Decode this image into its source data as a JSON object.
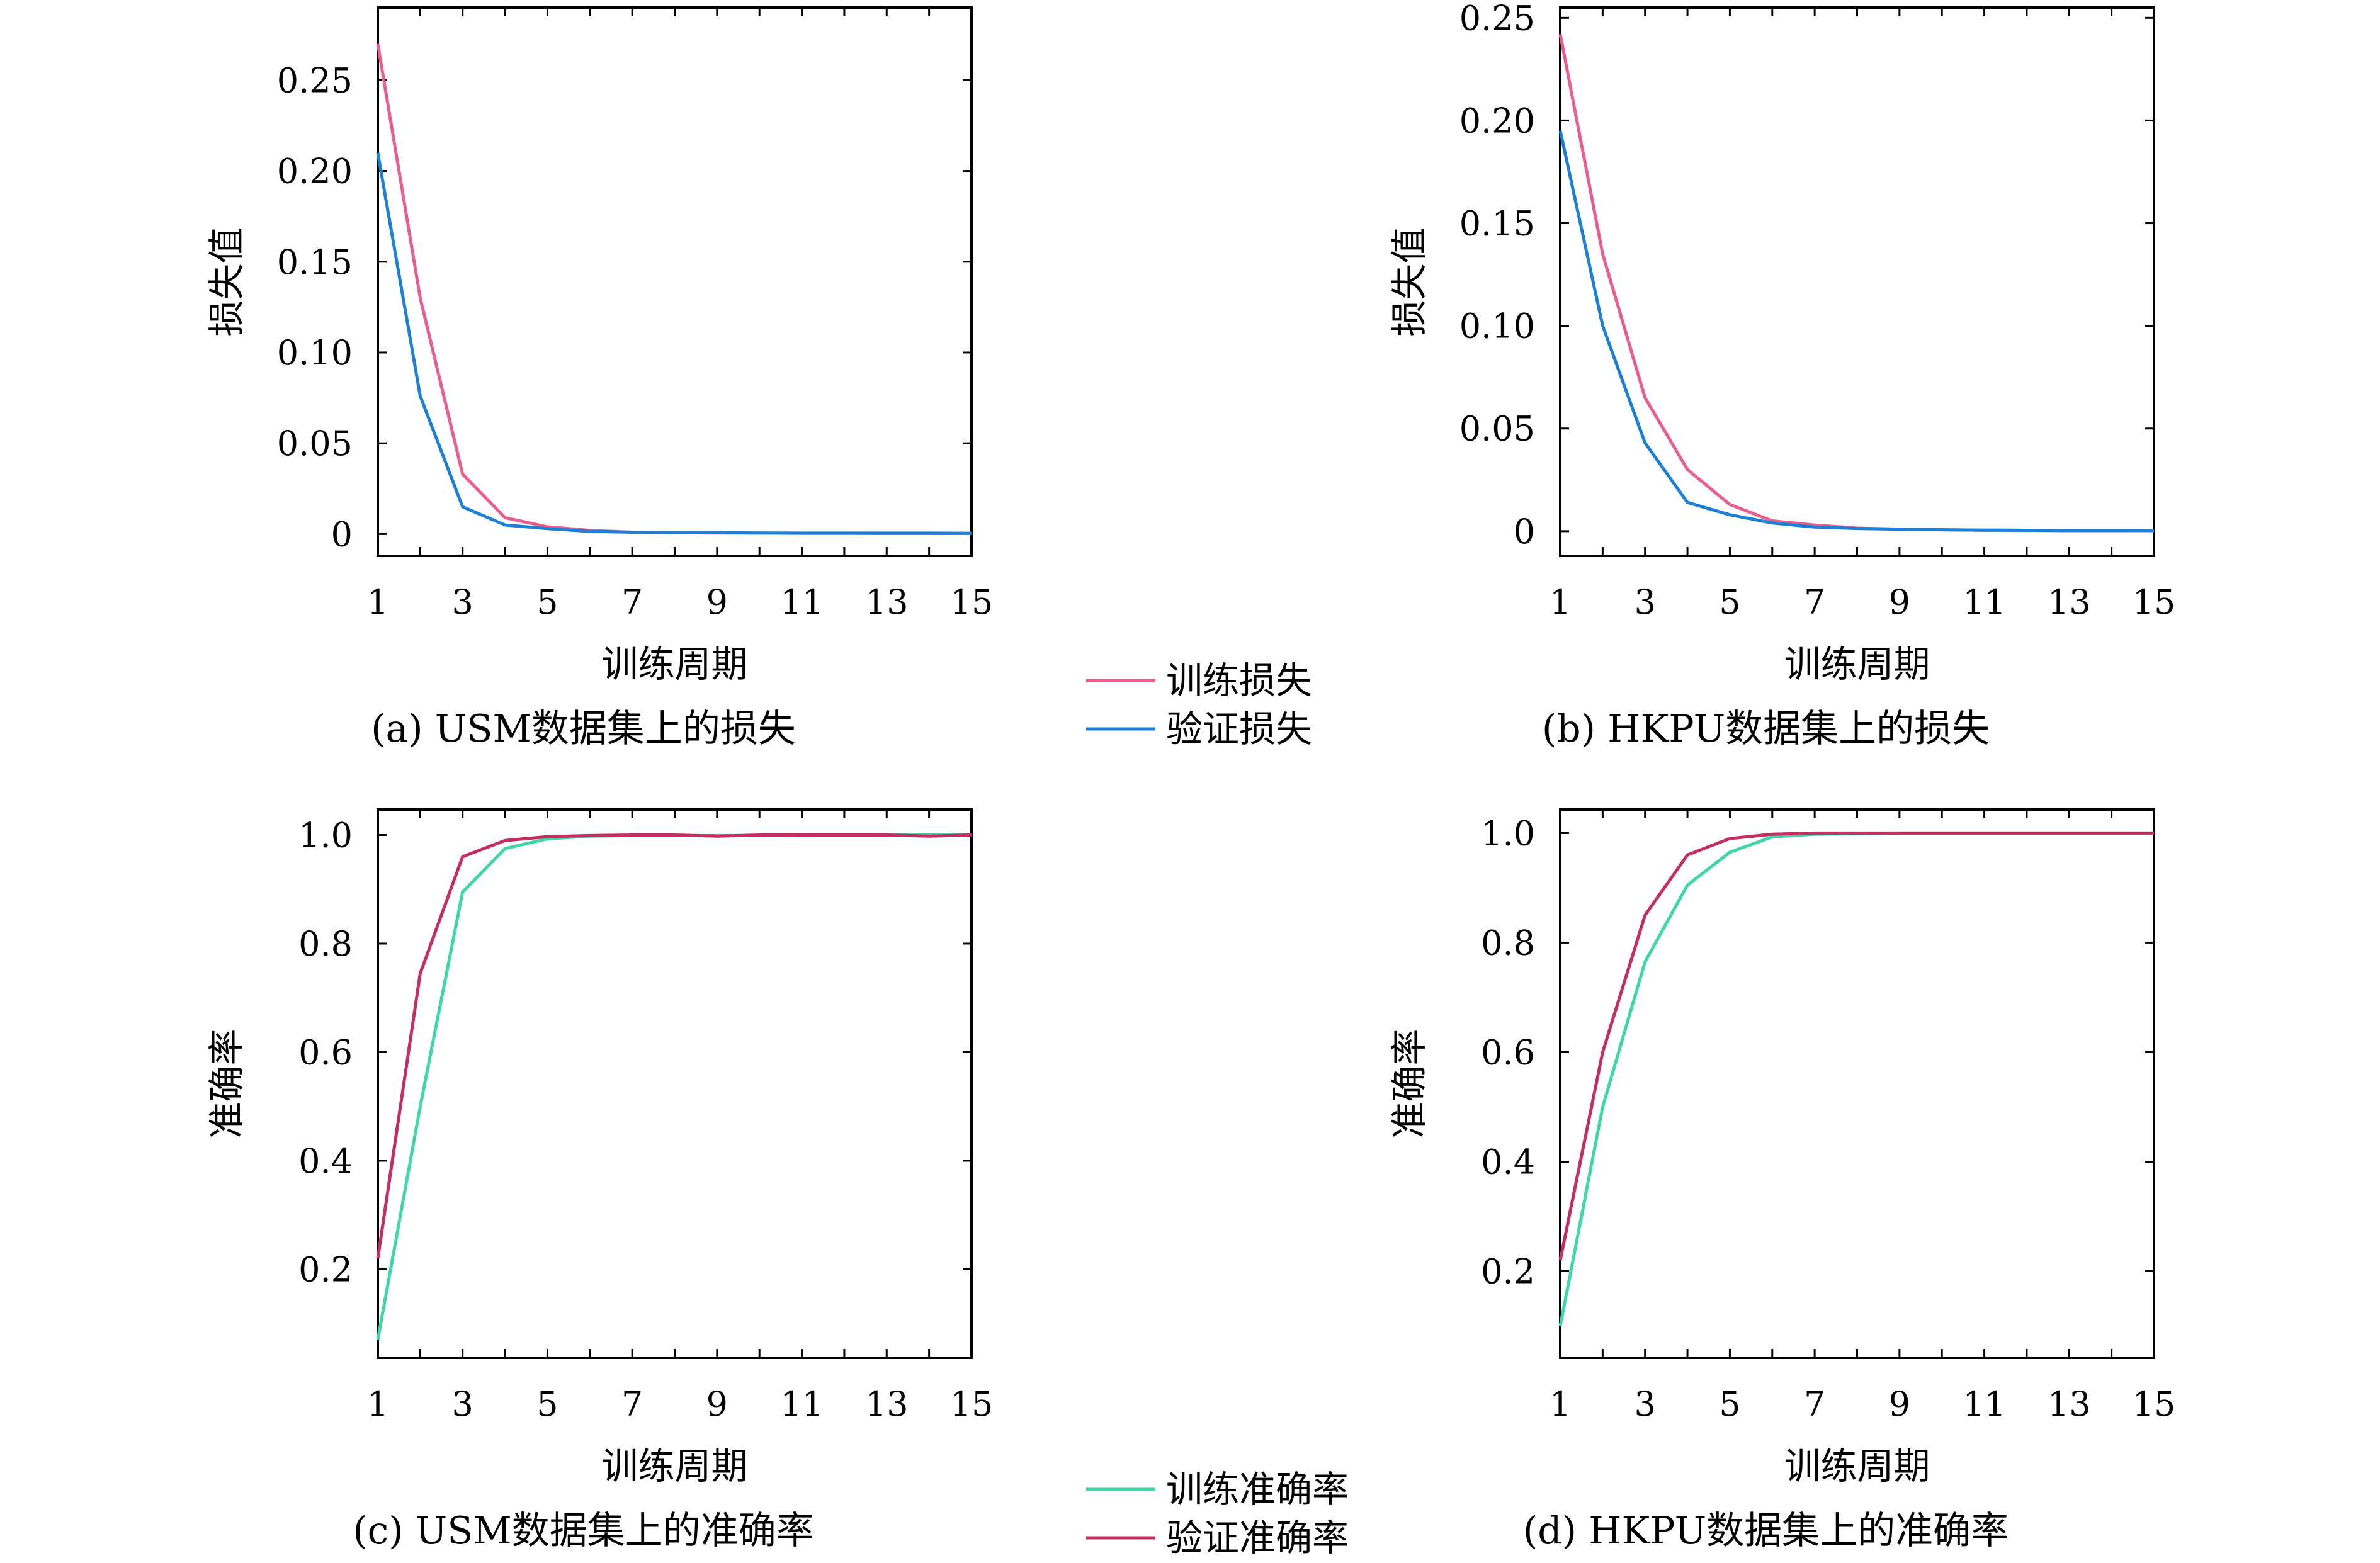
{
  "colors": {
    "train_loss": "#e8608a",
    "val_loss": "#1e7fd6",
    "train_acc": "#3fd6a8",
    "val_acc": "#c4305e"
  },
  "chart_data": [
    {
      "type": "line",
      "caption": "(a) USM数据集上的损失",
      "xlabel": "训练周期",
      "ylabel": "损失值",
      "xlim": [
        1,
        15
      ],
      "ylim": [
        -0.012,
        0.29
      ],
      "xticks": [
        1,
        3,
        5,
        7,
        9,
        11,
        13,
        15
      ],
      "xtick_labels": [
        "1",
        "3",
        "5",
        "7",
        "9",
        "11",
        "13",
        "15"
      ],
      "yticks": [
        0,
        0.05,
        0.1,
        0.15,
        0.2,
        0.25
      ],
      "ytick_labels": [
        "0",
        "0.05",
        "0.10",
        "0.15",
        "0.20",
        "0.25"
      ],
      "series": [
        {
          "key": "train_loss",
          "x": [
            1,
            2,
            3,
            4,
            5,
            6,
            7,
            8,
            9,
            10,
            11,
            12,
            13,
            14,
            15
          ],
          "values": [
            0.27,
            0.13,
            0.033,
            0.009,
            0.004,
            0.002,
            0.001,
            0.0008,
            0.0006,
            0.0005,
            0.0004,
            0.0004,
            0.0003,
            0.0003,
            0.0003
          ]
        },
        {
          "key": "val_loss",
          "x": [
            1,
            2,
            3,
            4,
            5,
            6,
            7,
            8,
            9,
            10,
            11,
            12,
            13,
            14,
            15
          ],
          "values": [
            0.21,
            0.076,
            0.015,
            0.005,
            0.003,
            0.0015,
            0.001,
            0.0008,
            0.0008,
            0.0006,
            0.0005,
            0.0005,
            0.0005,
            0.0005,
            0.0004
          ]
        }
      ]
    },
    {
      "type": "line",
      "caption": "(b) HKPU数据集上的损失",
      "xlabel": "训练周期",
      "ylabel": "损失值",
      "xlim": [
        1,
        15
      ],
      "ylim": [
        -0.012,
        0.255
      ],
      "xticks": [
        1,
        3,
        5,
        7,
        9,
        11,
        13,
        15
      ],
      "xtick_labels": [
        "1",
        "3",
        "5",
        "7",
        "9",
        "11",
        "13",
        "15"
      ],
      "yticks": [
        0,
        0.05,
        0.1,
        0.15,
        0.2,
        0.25
      ],
      "ytick_labels": [
        "0",
        "0.05",
        "0.10",
        "0.15",
        "0.20",
        "0.25"
      ],
      "series": [
        {
          "key": "train_loss",
          "x": [
            1,
            2,
            3,
            4,
            5,
            6,
            7,
            8,
            9,
            10,
            11,
            12,
            13,
            14,
            15
          ],
          "values": [
            0.242,
            0.135,
            0.065,
            0.03,
            0.013,
            0.005,
            0.003,
            0.0015,
            0.001,
            0.0007,
            0.0005,
            0.0004,
            0.0003,
            0.0003,
            0.0003
          ]
        },
        {
          "key": "val_loss",
          "x": [
            1,
            2,
            3,
            4,
            5,
            6,
            7,
            8,
            9,
            10,
            11,
            12,
            13,
            14,
            15
          ],
          "values": [
            0.195,
            0.1,
            0.043,
            0.014,
            0.008,
            0.004,
            0.002,
            0.0013,
            0.001,
            0.0007,
            0.0005,
            0.0004,
            0.0003,
            0.0003,
            0.0003
          ]
        }
      ]
    },
    {
      "type": "line",
      "caption": "(c) USM数据集上的准确率",
      "xlabel": "训练周期",
      "ylabel": "准确率",
      "xlim": [
        1,
        15
      ],
      "ylim": [
        0.037,
        1.047
      ],
      "xticks": [
        1,
        3,
        5,
        7,
        9,
        11,
        13,
        15
      ],
      "xtick_labels": [
        "1",
        "3",
        "5",
        "7",
        "9",
        "11",
        "13",
        "15"
      ],
      "yticks": [
        0.2,
        0.4,
        0.6,
        0.8,
        1.0
      ],
      "ytick_labels": [
        "0.2",
        "0.4",
        "0.6",
        "0.8",
        "1.0"
      ],
      "series": [
        {
          "key": "train_acc",
          "x": [
            1,
            2,
            3,
            4,
            5,
            6,
            7,
            8,
            9,
            10,
            11,
            12,
            13,
            14,
            15
          ],
          "values": [
            0.07,
            0.5,
            0.895,
            0.975,
            0.993,
            0.998,
            0.999,
            0.999,
            0.999,
            0.999,
            1.0,
            1.0,
            1.0,
            1.0,
            1.0
          ]
        },
        {
          "key": "val_acc",
          "x": [
            1,
            2,
            3,
            4,
            5,
            6,
            7,
            8,
            9,
            10,
            11,
            12,
            13,
            14,
            15
          ],
          "values": [
            0.22,
            0.745,
            0.96,
            0.99,
            0.997,
            0.999,
            1.0,
            1.0,
            0.998,
            1.0,
            1.0,
            1.0,
            1.0,
            0.998,
            1.0
          ]
        }
      ]
    },
    {
      "type": "line",
      "caption": "(d) HKPU数据集上的准确率",
      "xlabel": "训练周期",
      "ylabel": "准确率",
      "xlim": [
        1,
        15
      ],
      "ylim": [
        0.042,
        1.043
      ],
      "xticks": [
        1,
        3,
        5,
        7,
        9,
        11,
        13,
        15
      ],
      "xtick_labels": [
        "1",
        "3",
        "5",
        "7",
        "9",
        "11",
        "13",
        "15"
      ],
      "yticks": [
        0.2,
        0.4,
        0.6,
        0.8,
        1.0
      ],
      "ytick_labels": [
        "0.2",
        "0.4",
        "0.6",
        "0.8",
        "1.0"
      ],
      "series": [
        {
          "key": "train_acc",
          "x": [
            1,
            2,
            3,
            4,
            5,
            6,
            7,
            8,
            9,
            10,
            11,
            12,
            13,
            14,
            15
          ],
          "values": [
            0.1,
            0.5,
            0.765,
            0.905,
            0.965,
            0.993,
            0.998,
            0.999,
            1.0,
            1.0,
            1.0,
            1.0,
            1.0,
            1.0,
            1.0
          ]
        },
        {
          "key": "val_acc",
          "x": [
            1,
            2,
            3,
            4,
            5,
            6,
            7,
            8,
            9,
            10,
            11,
            12,
            13,
            14,
            15
          ],
          "values": [
            0.22,
            0.6,
            0.85,
            0.96,
            0.99,
            0.998,
            1.0,
            1.0,
            1.0,
            1.0,
            1.0,
            1.0,
            1.0,
            1.0,
            1.0
          ]
        }
      ]
    }
  ],
  "legends": {
    "loss": {
      "train": "训练损失",
      "val": "验证损失"
    },
    "accuracy": {
      "train": "训练准确率",
      "val": "验证准确率"
    }
  }
}
